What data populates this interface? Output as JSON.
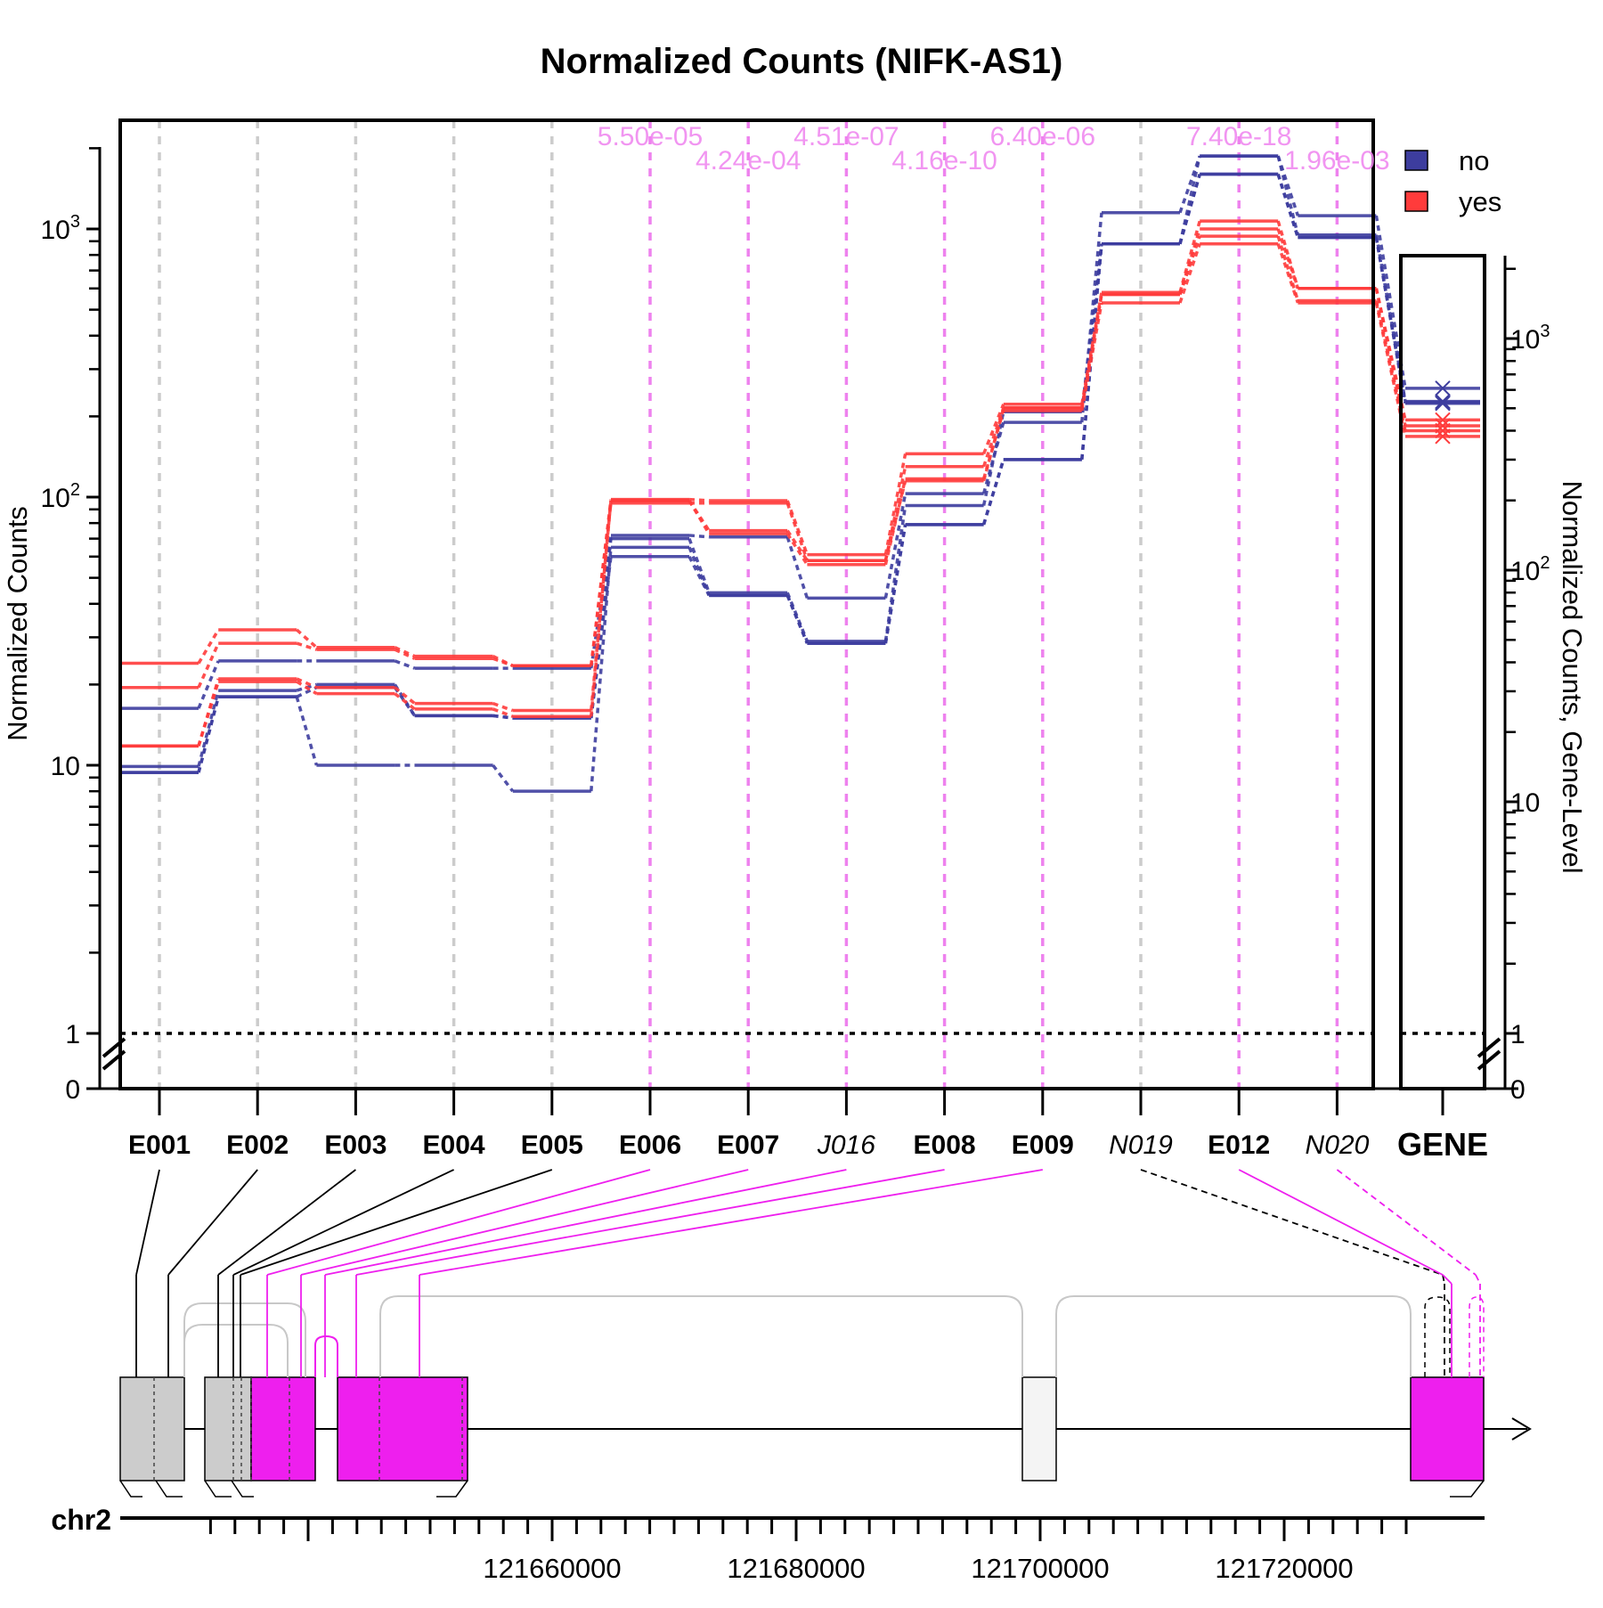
{
  "chart_data": {
    "type": "line",
    "title": "Normalized Counts (NIFK-AS1)",
    "ylabel": "Normalized Counts",
    "ylabel_right": "Normalized Counts, Gene-Level",
    "y_scale": "log",
    "y_ticks": [
      {
        "label": "1",
        "value": 1
      },
      {
        "label": "10",
        "value": 10
      },
      {
        "label": "10^2",
        "base": "10",
        "exp": "2",
        "value": 100
      },
      {
        "label": "10^3",
        "base": "10",
        "exp": "3",
        "value": 1000
      }
    ],
    "y_zero_label": "0",
    "gene_y_ticks": [
      {
        "label": "1",
        "value": 1
      },
      {
        "label": "10",
        "value": 10
      },
      {
        "label": "10^2",
        "base": "10",
        "exp": "2",
        "value": 100
      },
      {
        "label": "10^3",
        "base": "10",
        "exp": "3",
        "value": 1000
      }
    ],
    "gene_y_zero_label": "0",
    "categories": [
      {
        "label": "E001",
        "italic": false,
        "significant": false
      },
      {
        "label": "E002",
        "italic": false,
        "significant": false
      },
      {
        "label": "E003",
        "italic": false,
        "significant": false
      },
      {
        "label": "E004",
        "italic": false,
        "significant": false
      },
      {
        "label": "E005",
        "italic": false,
        "significant": false
      },
      {
        "label": "E006",
        "italic": false,
        "significant": true
      },
      {
        "label": "E007",
        "italic": false,
        "significant": true
      },
      {
        "label": "J016",
        "italic": true,
        "significant": true
      },
      {
        "label": "E008",
        "italic": false,
        "significant": true
      },
      {
        "label": "E009",
        "italic": false,
        "significant": true
      },
      {
        "label": "N019",
        "italic": true,
        "significant": false
      },
      {
        "label": "E012",
        "italic": false,
        "significant": true
      },
      {
        "label": "N020",
        "italic": true,
        "significant": true
      }
    ],
    "gene_label": "GENE",
    "pvalues": [
      {
        "category": "E006",
        "text": "5.50e-05",
        "row": 1
      },
      {
        "category": "E007",
        "text": "4.24e-04",
        "row": 2
      },
      {
        "category": "J016",
        "text": "4.51e-07",
        "row": 1
      },
      {
        "category": "E008",
        "text": "4.16e-10",
        "row": 2
      },
      {
        "category": "E009",
        "text": "6.40e-06",
        "row": 1
      },
      {
        "category": "E012",
        "text": "7.40e-18",
        "row": 1
      },
      {
        "category": "N020",
        "text": "1.96e-03",
        "row": 2
      }
    ],
    "legend": [
      {
        "label": "no",
        "color": "#3d3d9e"
      },
      {
        "label": "yes",
        "color": "#ff3b3b"
      }
    ],
    "legend_position": "top-right",
    "series": [
      {
        "group": "no",
        "values": [
          16.3,
          24.5,
          24.5,
          23,
          23,
          72,
          71,
          42,
          103,
          190,
          1150,
          1870,
          1120
        ],
        "gene": 610
      },
      {
        "group": "no",
        "values": [
          9.9,
          19,
          20,
          15.3,
          15,
          70,
          44,
          29,
          93,
          208,
          880,
          1870,
          950
        ],
        "gene": 535
      },
      {
        "group": "no",
        "values": [
          9.4,
          18,
          10,
          10,
          8,
          65,
          43,
          28.5,
          79,
          138,
          880,
          1600,
          930
        ],
        "gene": 530
      },
      {
        "group": "no",
        "values": [
          9.4,
          18,
          19.5,
          15.3,
          15,
          60,
          43,
          28.5,
          79,
          138,
          880,
          1600,
          930
        ],
        "gene": 525
      },
      {
        "group": "yes",
        "values": [
          24,
          32,
          27.5,
          25.5,
          23.5,
          98,
          97,
          61,
          145,
          222,
          580,
          1070,
          600
        ],
        "gene": 445
      },
      {
        "group": "yes",
        "values": [
          19.5,
          28.5,
          27,
          25,
          23.5,
          95,
          95,
          58,
          130,
          215,
          570,
          1000,
          600
        ],
        "gene": 420
      },
      {
        "group": "yes",
        "values": [
          11.8,
          21,
          19.5,
          17,
          16,
          97,
          75,
          58,
          115,
          215,
          570,
          940,
          540
        ],
        "gene": 400
      },
      {
        "group": "yes",
        "values": [
          11.8,
          20.5,
          18.5,
          16.2,
          15.2,
          97,
          73,
          56,
          117,
          210,
          530,
          880,
          530
        ],
        "gene": 378
      }
    ],
    "grid": "dashed vertical",
    "track": {
      "chromosome": "chr2",
      "ticks": [
        121660000,
        121680000,
        121700000,
        121720000
      ]
    }
  }
}
